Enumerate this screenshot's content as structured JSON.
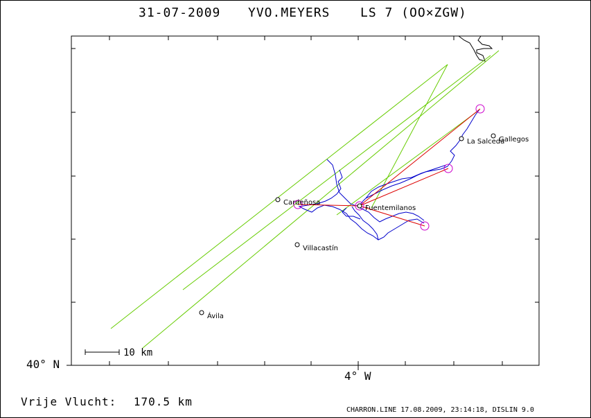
{
  "header": {
    "date": "31-07-2009",
    "pilot": "YVO.MEYERS",
    "glider": "LS 7 (OO×ZGW)"
  },
  "axes": {
    "lat_label": "40° N",
    "lon_label": "4° W"
  },
  "scale_bar": {
    "label": "10 km"
  },
  "towns": [
    {
      "name": "Gallegos"
    },
    {
      "name": "La Salceda"
    },
    {
      "name": "Cardeñosa"
    },
    {
      "name": "Fuentemilanos"
    },
    {
      "name": "Villacastín"
    },
    {
      "name": "Ávila"
    }
  ],
  "flight": {
    "label": "Vrije Vlucht:",
    "distance": "170.5 km"
  },
  "footer": "CHARRON.LINE 17.08.2009, 23:14:18, DISLIN 9.0",
  "colors": {
    "track": "#0000cc",
    "task_legs": "#dd0000",
    "glide_lines": "#66cc00",
    "turnpoints": "#cc00cc",
    "frame": "#000000"
  }
}
